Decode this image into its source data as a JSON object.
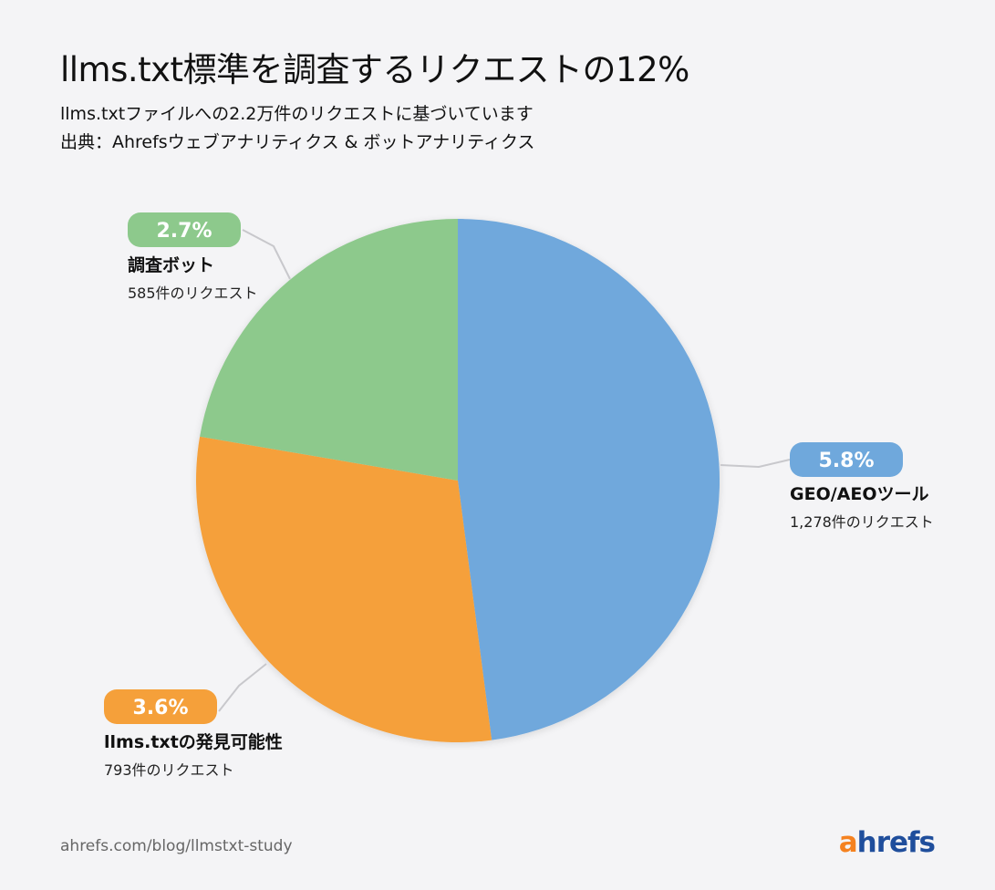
{
  "title": "llms.txt標準を調査するリクエストの12%",
  "subtitle_lines": [
    "llms.txtファイルへの2.2万件のリクエストに基づいています",
    "出典：Ahrefsウェブアナリティクス & ボットアナリティクス"
  ],
  "footer": {
    "url": "ahrefs.com/blog/llmstxt-study",
    "logo_first": "a",
    "logo_rest": "hrefs",
    "logo_colors": {
      "first": "#f58220",
      "rest": "#1f4e9c"
    }
  },
  "chart_data": {
    "type": "pie",
    "title": "llms.txt標準を調査するリクエストの12%",
    "slices": [
      {
        "name": "GEO/AEOツール",
        "percent": "5.8%",
        "value": 5.8,
        "count_label": "1,278件のリクエスト",
        "color": "#6fa8dc"
      },
      {
        "name": "llms.txtの発見可能性",
        "percent": "3.6%",
        "value": 3.6,
        "count_label": "793件のリクエスト",
        "color": "#f5a03a"
      },
      {
        "name": "調査ボット",
        "percent": "2.7%",
        "value": 2.7,
        "count_label": "585件のリクエスト",
        "color": "#8dc98c"
      }
    ],
    "start": "top",
    "direction": "clockwise"
  }
}
